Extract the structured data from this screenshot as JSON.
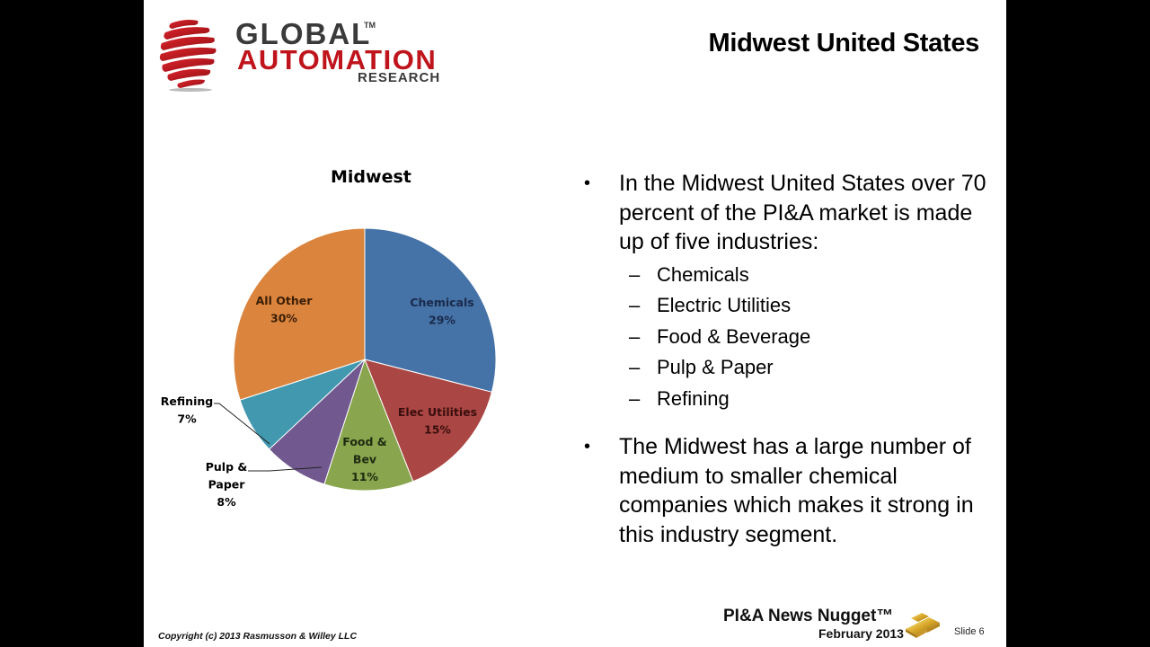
{
  "slide": {
    "title": "Midwest United States",
    "logo": {
      "line1": "GLOBAL",
      "tm": "TM",
      "line2": "AUTOMATION",
      "line3": "RESEARCH"
    },
    "bullets": [
      {
        "text": "In the Midwest United States over 70 percent of the PI&A market is made up of five industries:",
        "sub": [
          "Chemicals",
          "Electric Utilities",
          "Food & Beverage",
          "Pulp & Paper",
          "Refining"
        ]
      },
      {
        "text": "The Midwest has a large number of medium to smaller chemical companies which makes it strong in this industry segment.",
        "sub": []
      }
    ],
    "bullet_glyph": "•",
    "dash_glyph": "–",
    "footer": {
      "copyright": "Copyright (c) 2013 Rasmusson & Willey LLC",
      "nugget_title": "PI&A News Nugget™",
      "nugget_date": "February 2013",
      "slide_number": "Slide 6",
      "nugget_icon": "gold-bars-icon"
    }
  },
  "chart_data": {
    "type": "pie",
    "title": "Midwest",
    "categories": [
      "Chemicals",
      "Elec Utilities",
      "Food & Bev",
      "Pulp & Paper",
      "Refining",
      "All Other"
    ],
    "values": [
      29,
      15,
      11,
      8,
      7,
      30
    ],
    "labels": [
      "Chemicals\n29%",
      "Elec Utilities\n15%",
      "Food &\nBev\n11%",
      "Pulp &\nPaper\n8%",
      "Refining\n7%",
      "All Other\n30%"
    ],
    "colors": [
      "#4572a7",
      "#aa4643",
      "#89a54e",
      "#71588f",
      "#4198af",
      "#db843d"
    ],
    "start_angle_deg": 0,
    "direction": "clockwise",
    "unit": "%",
    "legend": "none (data labels on slices)"
  }
}
